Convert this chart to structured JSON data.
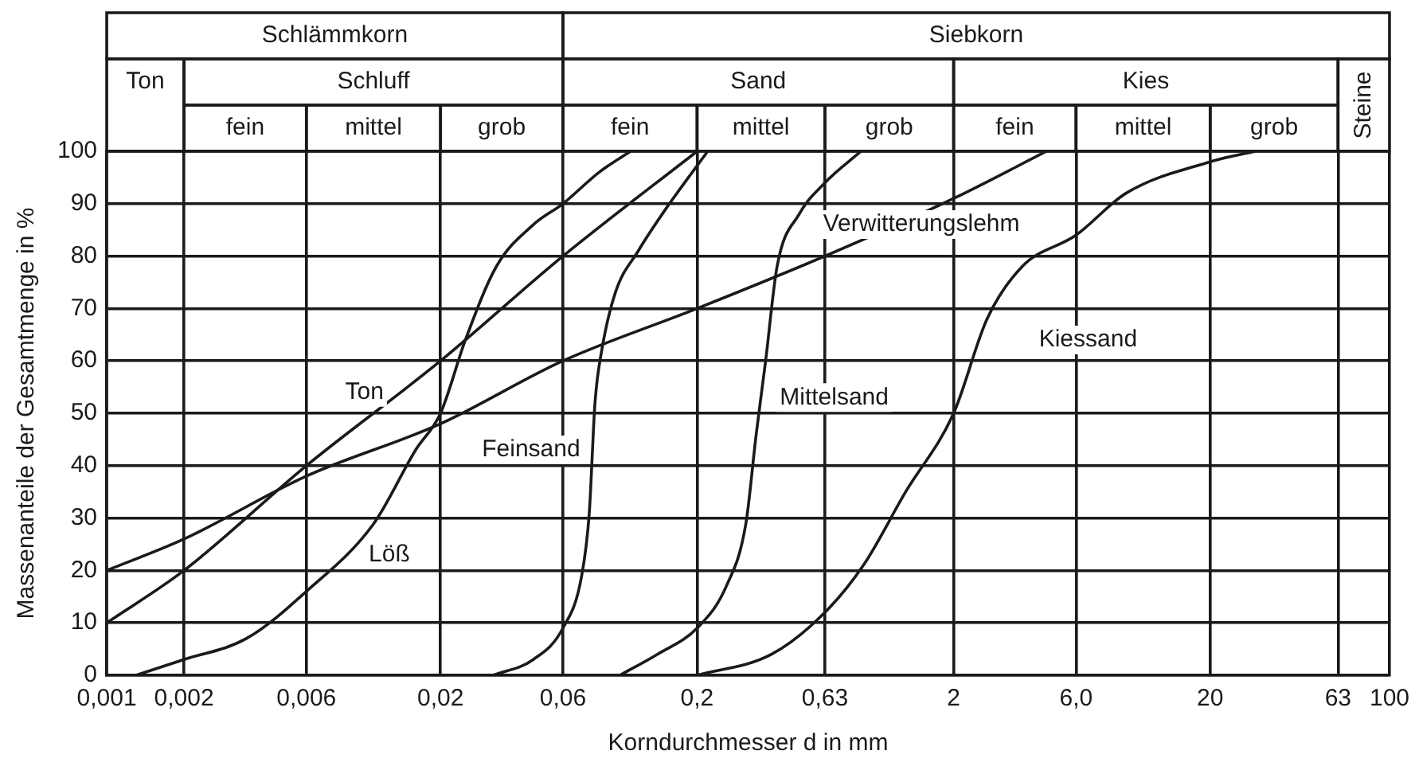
{
  "chart_data": {
    "type": "line",
    "xlabel": "Korndurchmesser d in mm",
    "ylabel": "Massenanteile der Gesamtmenge in %",
    "log": "x",
    "grid": true,
    "legend": false,
    "xlim": [
      0.001,
      100
    ],
    "ylim": [
      0,
      100
    ],
    "xticks": [
      {
        "value": 0.001,
        "label": "0,001"
      },
      {
        "value": 0.002,
        "label": "0,002"
      },
      {
        "value": 0.006,
        "label": "0,006"
      },
      {
        "value": 0.02,
        "label": "0,02"
      },
      {
        "value": 0.06,
        "label": "0,06"
      },
      {
        "value": 0.2,
        "label": "0,2"
      },
      {
        "value": 0.63,
        "label": "0,63"
      },
      2,
      {
        "value": 6,
        "label": "6,0"
      },
      20,
      63,
      100
    ],
    "yticks": [
      0,
      10,
      20,
      30,
      40,
      50,
      60,
      70,
      80,
      90,
      100
    ],
    "annotations": [
      "Schlämmkorn",
      "Siebkorn",
      "Ton",
      "Schluff",
      "Sand",
      "Kies",
      "Steine",
      "fein",
      "mittel",
      "grob",
      "fein",
      "mittel",
      "grob",
      "fein",
      "mittel",
      "grob"
    ],
    "series": [
      {
        "name": "Ton",
        "color": "#1a1a1a",
        "x": [
          0.001,
          0.002,
          0.006,
          0.02,
          0.06,
          0.2
        ],
        "values": [
          10,
          20,
          40,
          60,
          80,
          100
        ]
      },
      {
        "name": "Feinsand",
        "color": "#1a1a1a",
        "x": [
          0.032,
          0.046,
          0.06,
          0.071,
          0.076,
          0.08,
          0.085,
          0.096,
          0.118,
          0.151,
          0.22
        ],
        "values": [
          0,
          3,
          9,
          19,
          31,
          52,
          62,
          73,
          81,
          89,
          100
        ]
      },
      {
        "name": "Löß",
        "color": "#1a1a1a",
        "x": [
          0.0013,
          0.002,
          0.0035,
          0.006,
          0.011,
          0.016,
          0.02,
          0.025,
          0.033,
          0.046,
          0.06,
          0.083,
          0.11
        ],
        "values": [
          0,
          3,
          7,
          16,
          29,
          43,
          50,
          64,
          78,
          86,
          90,
          96,
          100
        ]
      },
      {
        "name": "Mittelsand",
        "color": "#1a1a1a",
        "x": [
          0.1,
          0.14,
          0.2,
          0.26,
          0.31,
          0.34,
          0.37,
          0.41,
          0.5,
          0.63,
          0.87
        ],
        "values": [
          0,
          4,
          9,
          17,
          29,
          46,
          60,
          78,
          88,
          94,
          100
        ]
      },
      {
        "name": "Verwitterungslehm",
        "color": "#1a1a1a",
        "x": [
          0.001,
          0.002,
          0.006,
          0.02,
          0.06,
          0.2,
          0.63,
          2,
          4.6
        ],
        "values": [
          20,
          26,
          38,
          48,
          60,
          70,
          80,
          91,
          100
        ]
      },
      {
        "name": "Kiessand",
        "color": "#1a1a1a",
        "x": [
          0.2,
          0.39,
          0.63,
          0.89,
          1.3,
          2,
          2.7,
          3.7,
          6,
          9.4,
          20,
          30
        ],
        "values": [
          0,
          4,
          12,
          21,
          35,
          50,
          68,
          78,
          84,
          92,
          98,
          100
        ]
      }
    ]
  }
}
